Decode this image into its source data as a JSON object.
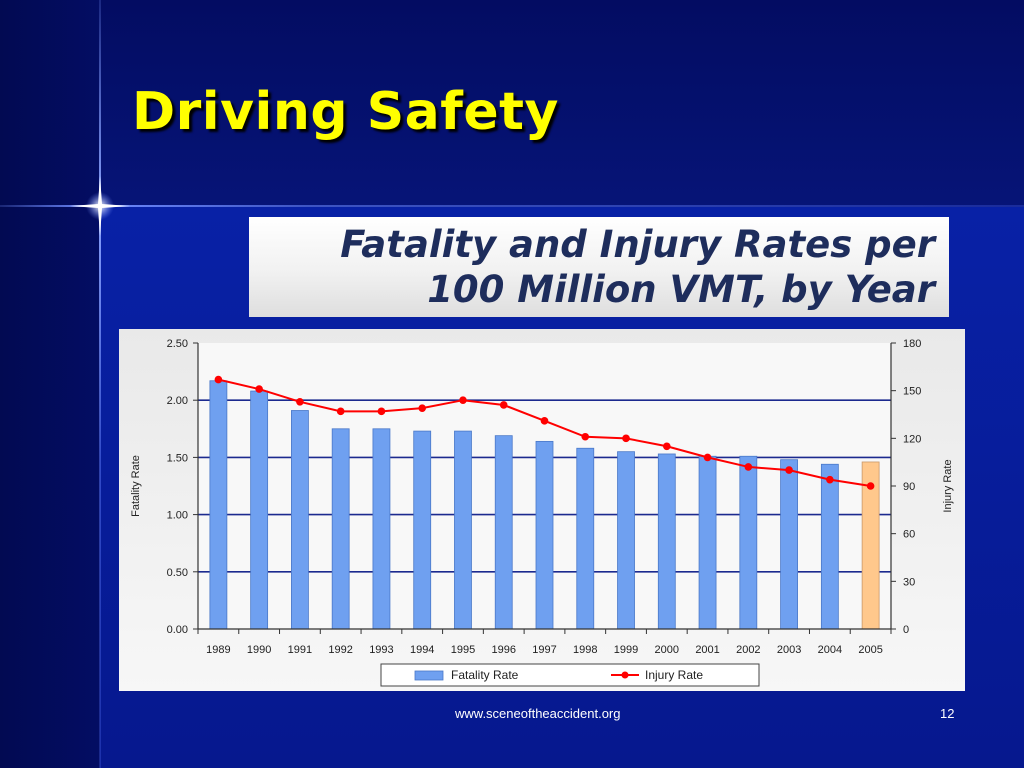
{
  "slide": {
    "title": "Driving Safety",
    "footer": "www.sceneoftheaccident.org",
    "number": "12"
  },
  "chart_heading": {
    "line1": "Fatality and Injury Rates per",
    "line2": "100 Million VMT, by Year"
  },
  "colors": {
    "background": "#04127a",
    "title": "#ffff00",
    "bar": "#6fa0f0",
    "bar_highlight": "#ffc88c",
    "injury_line": "#ff0000",
    "gridline": "#1c2a8f"
  },
  "chart_data": {
    "type": "bar",
    "categories": [
      "1989",
      "1990",
      "1991",
      "1992",
      "1993",
      "1994",
      "1995",
      "1996",
      "1997",
      "1998",
      "1999",
      "2000",
      "2001",
      "2002",
      "2003",
      "2004",
      "2005"
    ],
    "series": [
      {
        "name": "Fatality Rate",
        "type": "bar",
        "axis": "left",
        "values": [
          2.17,
          2.08,
          1.91,
          1.75,
          1.75,
          1.73,
          1.73,
          1.69,
          1.64,
          1.58,
          1.55,
          1.53,
          1.51,
          1.51,
          1.48,
          1.44,
          1.46
        ]
      },
      {
        "name": "Injury Rate",
        "type": "line",
        "axis": "right",
        "values": [
          157,
          151,
          143,
          137,
          137,
          139,
          144,
          141,
          131,
          121,
          120,
          115,
          108,
          102,
          100,
          94,
          90
        ]
      }
    ],
    "highlight_category": "2005",
    "ylabel": "Fatality Rate",
    "y2label": "Injury Rate",
    "ylim": [
      0,
      2.5
    ],
    "y2lim": [
      0,
      180
    ],
    "yticks": [
      "0.00",
      "0.50",
      "1.00",
      "1.50",
      "2.00",
      "2.50"
    ],
    "y2ticks": [
      "0",
      "30",
      "60",
      "90",
      "120",
      "150",
      "180"
    ],
    "legend": [
      "Fatality Rate",
      "Injury Rate"
    ],
    "legend_position": "bottom"
  }
}
